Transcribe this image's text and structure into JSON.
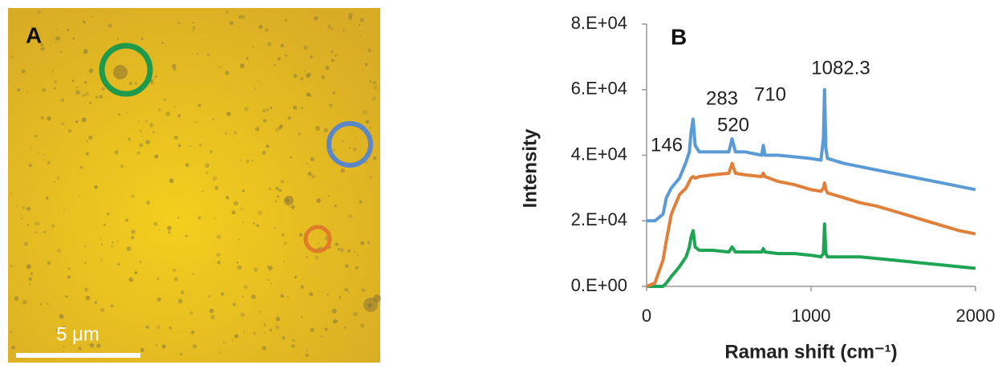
{
  "panel_a": {
    "label": "A",
    "scale_bar": "5 μm"
  },
  "chart_data": {
    "type": "line",
    "title": "B",
    "x_label": "Raman shift (cm⁻¹)",
    "y_label": "Intensity",
    "xlim": [
      0,
      2000
    ],
    "xticks": [
      0,
      1000,
      2000
    ],
    "ylim": [
      0,
      80000
    ],
    "yticks": [
      {
        "value": 0,
        "label": "0.E+00"
      },
      {
        "value": 20000,
        "label": "2.E+04"
      },
      {
        "value": 40000,
        "label": "4.E+04"
      },
      {
        "value": 60000,
        "label": "6.E+04"
      },
      {
        "value": 80000,
        "label": "8.E+04"
      }
    ],
    "annotations": [
      "146",
      "283",
      "520",
      "710",
      "1082.3"
    ],
    "x": [
      0,
      50,
      100,
      120,
      150,
      200,
      240,
      260,
      270,
      283,
      295,
      320,
      400,
      500,
      520,
      540,
      600,
      700,
      710,
      720,
      800,
      900,
      1000,
      1060,
      1075,
      1082,
      1090,
      1100,
      1200,
      1300,
      1400,
      1500,
      1600,
      1700,
      1800,
      1900,
      2000
    ],
    "series": [
      {
        "color": "#5b9bd5",
        "values": [
          20000,
          20000,
          22000,
          27000,
          30000,
          33000,
          38000,
          41000,
          47000,
          51000,
          43000,
          41000,
          41000,
          41000,
          45000,
          41000,
          41000,
          40000,
          43000,
          40000,
          40000,
          39500,
          39000,
          38500,
          45000,
          60000,
          42000,
          39000,
          37500,
          36500,
          35500,
          34500,
          33500,
          32500,
          31500,
          30500,
          29500
        ]
      },
      {
        "color": "#e0803a",
        "values": [
          0,
          1000,
          8000,
          14000,
          22000,
          28000,
          30000,
          32000,
          33000,
          33500,
          33000,
          33500,
          34000,
          34500,
          37500,
          34500,
          34000,
          33500,
          34500,
          33500,
          32000,
          31000,
          29500,
          29000,
          30000,
          31500,
          29500,
          28500,
          27000,
          25500,
          24500,
          23000,
          21500,
          20000,
          18500,
          17000,
          16000
        ]
      },
      {
        "color": "#1fa454",
        "values": [
          0,
          0,
          0,
          1000,
          3000,
          6000,
          9000,
          12000,
          15000,
          17000,
          12000,
          11000,
          11000,
          10500,
          12000,
          10500,
          10500,
          10500,
          11500,
          10500,
          10000,
          10000,
          9500,
          9000,
          10000,
          19000,
          10000,
          9000,
          9000,
          9000,
          8500,
          8000,
          7500,
          7000,
          6500,
          6000,
          5500
        ]
      }
    ]
  }
}
